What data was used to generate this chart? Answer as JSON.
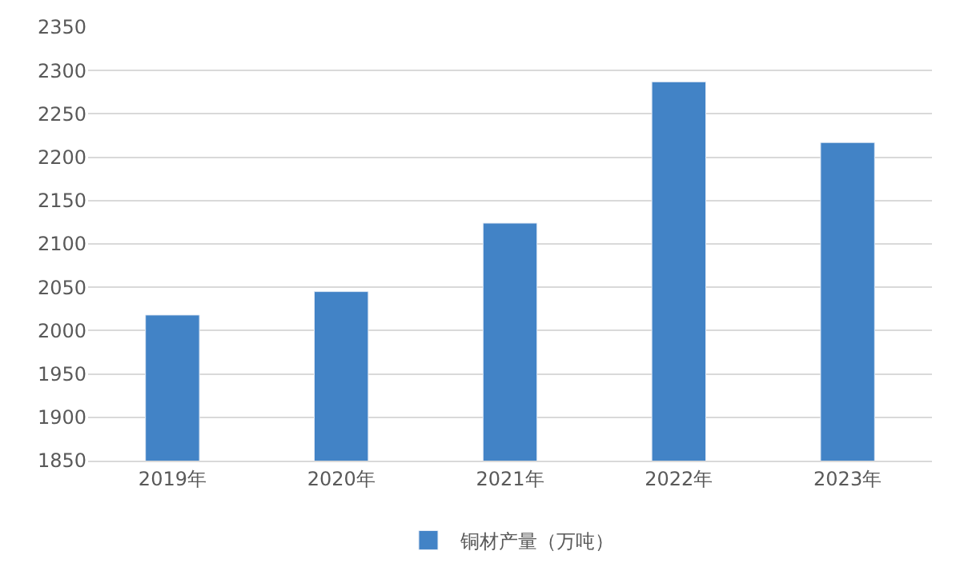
{
  "chart_data": {
    "type": "bar",
    "categories": [
      "2019年",
      "2020年",
      "2021年",
      "2022年",
      "2023年"
    ],
    "series": [
      {
        "name": "铜材产量（万吨）",
        "color": "#4283c6",
        "values": [
          2018,
          2045,
          2124,
          2287,
          2217
        ]
      }
    ],
    "ylim": [
      1850,
      2350
    ],
    "yticks": [
      1850,
      1900,
      1950,
      2000,
      2050,
      2100,
      2150,
      2200,
      2250,
      2300,
      2350
    ],
    "grid": "y",
    "legend": "bottom"
  }
}
